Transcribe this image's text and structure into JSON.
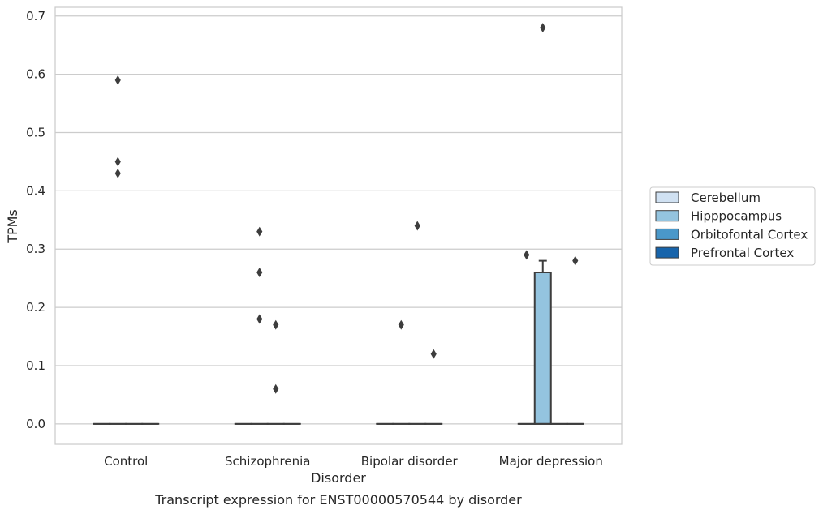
{
  "chart_data": {
    "type": "box",
    "title": "",
    "caption": "Transcript expression for ENST00000570544 by disorder",
    "xlabel": "Disorder",
    "ylabel": "TPMs",
    "ylim": [
      -0.035,
      0.715
    ],
    "yticks": [
      0.0,
      0.1,
      0.2,
      0.3,
      0.4,
      0.5,
      0.6,
      0.7
    ],
    "ytick_labels": [
      "0.0",
      "0.1",
      "0.2",
      "0.3",
      "0.4",
      "0.5",
      "0.6",
      "0.7"
    ],
    "grid": "horizontal",
    "legend_position": "right",
    "categories": [
      "Control",
      "Schizophrenia",
      "Bipolar disorder",
      "Major depression"
    ],
    "series": [
      {
        "name": "Cerebellum",
        "color": "#d0e1f2"
      },
      {
        "name": "Hipppocampus",
        "color": "#94c4df"
      },
      {
        "name": "Orbitofontal Cortex",
        "color": "#4a98c9"
      },
      {
        "name": "Prefrontal Cortex",
        "color": "#1764ab"
      }
    ],
    "boxes": [
      {
        "category": "Control",
        "series": "Cerebellum",
        "q1": 0,
        "median": 0,
        "q3": 0,
        "whisker_low": 0,
        "whisker_high": 0,
        "outliers": []
      },
      {
        "category": "Control",
        "series": "Hipppocampus",
        "q1": 0,
        "median": 0,
        "q3": 0,
        "whisker_low": 0,
        "whisker_high": 0,
        "outliers": [
          0.59,
          0.45,
          0.43
        ]
      },
      {
        "category": "Control",
        "series": "Orbitofontal Cortex",
        "q1": 0,
        "median": 0,
        "q3": 0,
        "whisker_low": 0,
        "whisker_high": 0,
        "outliers": []
      },
      {
        "category": "Control",
        "series": "Prefrontal Cortex",
        "q1": 0,
        "median": 0,
        "q3": 0,
        "whisker_low": 0,
        "whisker_high": 0,
        "outliers": []
      },
      {
        "category": "Schizophrenia",
        "series": "Cerebellum",
        "q1": 0,
        "median": 0,
        "q3": 0,
        "whisker_low": 0,
        "whisker_high": 0,
        "outliers": []
      },
      {
        "category": "Schizophrenia",
        "series": "Hipppocampus",
        "q1": 0,
        "median": 0,
        "q3": 0,
        "whisker_low": 0,
        "whisker_high": 0,
        "outliers": [
          0.33,
          0.26,
          0.18
        ]
      },
      {
        "category": "Schizophrenia",
        "series": "Orbitofontal Cortex",
        "q1": 0,
        "median": 0,
        "q3": 0,
        "whisker_low": 0,
        "whisker_high": 0,
        "outliers": [
          0.17,
          0.06
        ]
      },
      {
        "category": "Schizophrenia",
        "series": "Prefrontal Cortex",
        "q1": 0,
        "median": 0,
        "q3": 0,
        "whisker_low": 0,
        "whisker_high": 0,
        "outliers": []
      },
      {
        "category": "Bipolar disorder",
        "series": "Cerebellum",
        "q1": 0,
        "median": 0,
        "q3": 0,
        "whisker_low": 0,
        "whisker_high": 0,
        "outliers": []
      },
      {
        "category": "Bipolar disorder",
        "series": "Hipppocampus",
        "q1": 0,
        "median": 0,
        "q3": 0,
        "whisker_low": 0,
        "whisker_high": 0,
        "outliers": [
          0.17
        ]
      },
      {
        "category": "Bipolar disorder",
        "series": "Orbitofontal Cortex",
        "q1": 0,
        "median": 0,
        "q3": 0,
        "whisker_low": 0,
        "whisker_high": 0,
        "outliers": [
          0.34
        ]
      },
      {
        "category": "Bipolar disorder",
        "series": "Prefrontal Cortex",
        "q1": 0,
        "median": 0,
        "q3": 0,
        "whisker_low": 0,
        "whisker_high": 0,
        "outliers": [
          0.12
        ]
      },
      {
        "category": "Major depression",
        "series": "Cerebellum",
        "q1": 0,
        "median": 0,
        "q3": 0,
        "whisker_low": 0,
        "whisker_high": 0,
        "outliers": [
          0.29
        ]
      },
      {
        "category": "Major depression",
        "series": "Hipppocampus",
        "q1": 0,
        "median": 0,
        "q3": 0.26,
        "whisker_low": 0,
        "whisker_high": 0.28,
        "outliers": [
          0.68
        ]
      },
      {
        "category": "Major depression",
        "series": "Orbitofontal Cortex",
        "q1": 0,
        "median": 0,
        "q3": 0,
        "whisker_low": 0,
        "whisker_high": 0,
        "outliers": []
      },
      {
        "category": "Major depression",
        "series": "Prefrontal Cortex",
        "q1": 0,
        "median": 0,
        "q3": 0,
        "whisker_low": 0,
        "whisker_high": 0,
        "outliers": [
          0.28
        ]
      }
    ]
  }
}
